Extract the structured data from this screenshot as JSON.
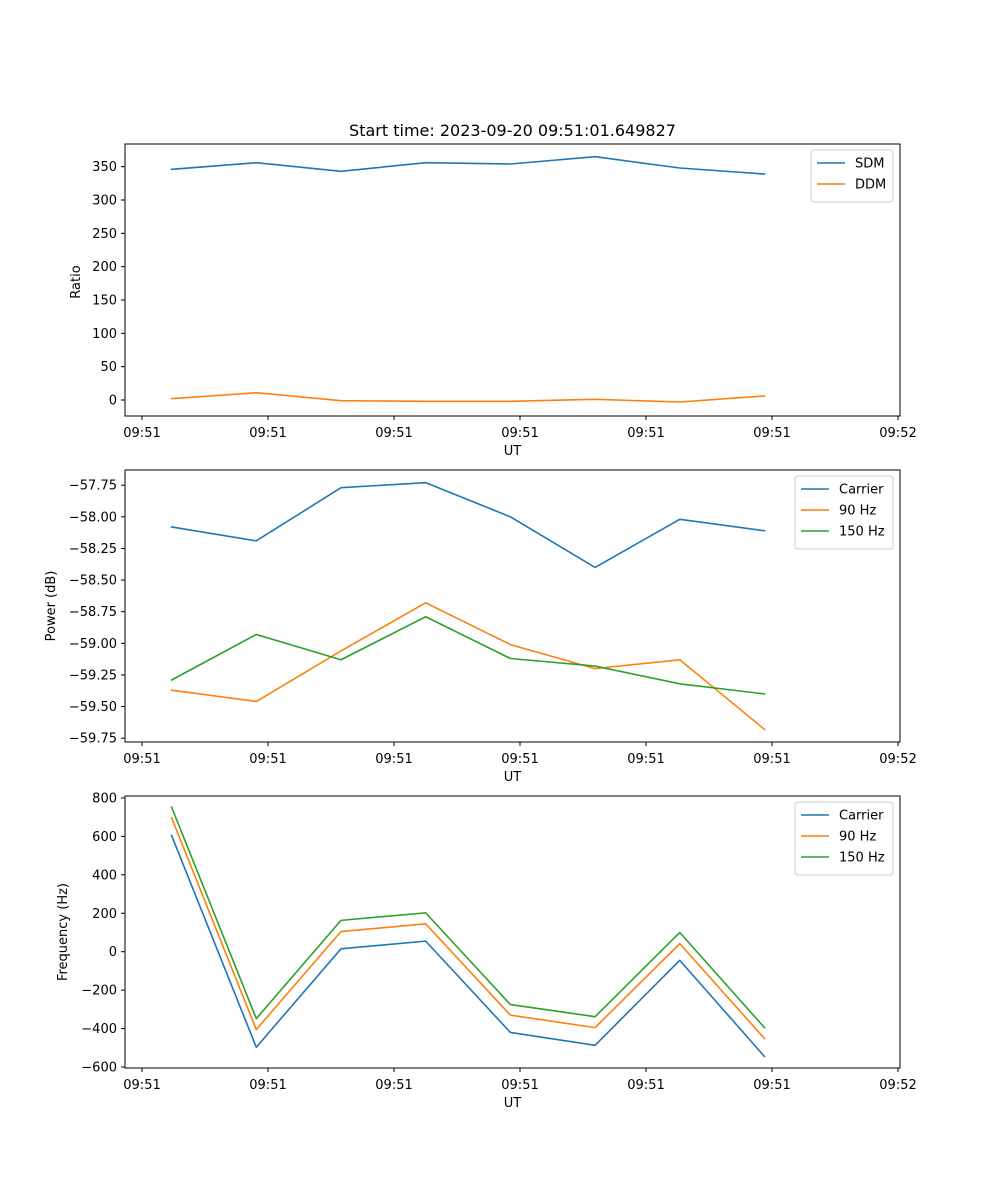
{
  "figure": {
    "title": "Start time: 2023-09-20 09:51:01.649827"
  },
  "chart_data": [
    {
      "type": "line",
      "title": "Start time: 2023-09-20 09:51:01.649827",
      "xlabel": "UT",
      "ylabel": "Ratio",
      "x_tick_labels": [
        "09:51",
        "09:51",
        "09:51",
        "09:51",
        "09:51",
        "09:51",
        "09:52"
      ],
      "x": [
        1,
        2,
        3,
        4,
        5,
        6,
        7,
        8
      ],
      "xlim": [
        0.45,
        9.6
      ],
      "ylim": [
        -24,
        384
      ],
      "y_ticks": [
        0,
        50,
        100,
        150,
        200,
        250,
        300,
        350
      ],
      "legend_position": "top-right",
      "series": [
        {
          "name": "SDM",
          "color": "#1f77b4",
          "values": [
            346,
            356,
            343,
            356,
            354,
            365,
            348,
            339
          ]
        },
        {
          "name": "DDM",
          "color": "#ff7f0e",
          "values": [
            2,
            11,
            -1,
            -2,
            -2,
            1,
            -3,
            6
          ]
        }
      ]
    },
    {
      "type": "line",
      "xlabel": "UT",
      "ylabel": "Power (dB)",
      "x_tick_labels": [
        "09:51",
        "09:51",
        "09:51",
        "09:51",
        "09:51",
        "09:51",
        "09:52"
      ],
      "x": [
        1,
        2,
        3,
        4,
        5,
        6,
        7,
        8
      ],
      "xlim": [
        0.45,
        9.6
      ],
      "ylim": [
        -59.78,
        -57.63
      ],
      "y_ticks": [
        -57.75,
        -58.0,
        -58.25,
        -58.5,
        -58.75,
        -59.0,
        -59.25,
        -59.5,
        -59.75
      ],
      "legend_position": "top-right",
      "series": [
        {
          "name": "Carrier",
          "color": "#1f77b4",
          "values": [
            -58.08,
            -58.19,
            -57.77,
            -57.73,
            -58.0,
            -58.4,
            -58.02,
            -58.11
          ]
        },
        {
          "name": "90 Hz",
          "color": "#ff7f0e",
          "values": [
            -59.37,
            -59.46,
            -59.06,
            -58.68,
            -59.01,
            -59.2,
            -59.13,
            -59.68
          ]
        },
        {
          "name": "150 Hz",
          "color": "#2ca02c",
          "values": [
            -59.29,
            -58.93,
            -59.13,
            -58.79,
            -59.12,
            -59.18,
            -59.32,
            -59.4
          ]
        }
      ]
    },
    {
      "type": "line",
      "xlabel": "UT",
      "ylabel": "Frequency (Hz)",
      "x_tick_labels": [
        "09:51",
        "09:51",
        "09:51",
        "09:51",
        "09:51",
        "09:51",
        "09:52"
      ],
      "x": [
        1,
        2,
        3,
        4,
        5,
        6,
        7,
        8
      ],
      "xlim": [
        0.45,
        9.6
      ],
      "ylim": [
        -605,
        810
      ],
      "y_ticks": [
        800,
        600,
        400,
        200,
        0,
        -200,
        -400,
        -600
      ],
      "legend_position": "top-right",
      "series": [
        {
          "name": "Carrier",
          "color": "#1f77b4",
          "values": [
            605,
            -497,
            15,
            55,
            -420,
            -487,
            -45,
            -545
          ]
        },
        {
          "name": "90 Hz",
          "color": "#ff7f0e",
          "values": [
            697,
            -405,
            105,
            145,
            -330,
            -395,
            42,
            -452
          ]
        },
        {
          "name": "150 Hz",
          "color": "#2ca02c",
          "values": [
            752,
            -348,
            163,
            202,
            -275,
            -338,
            100,
            -395
          ]
        }
      ]
    }
  ]
}
